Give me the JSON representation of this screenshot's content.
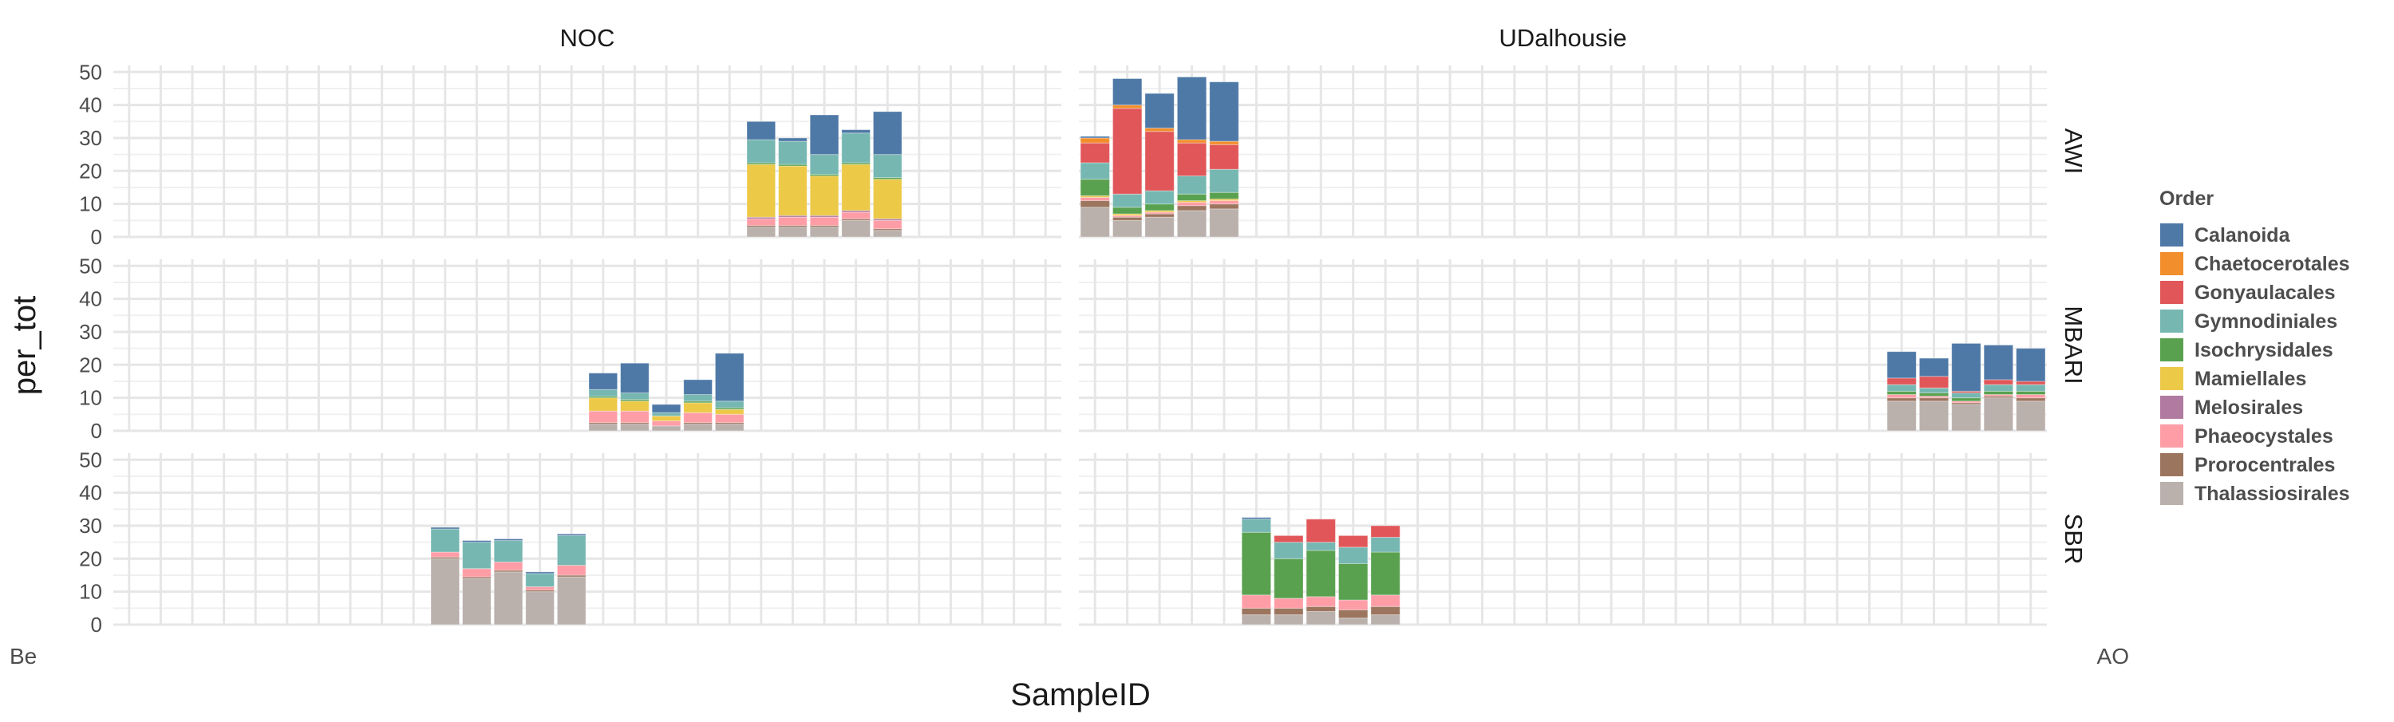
{
  "chart_data": {
    "type": "bar",
    "stacked": true,
    "facet_columns": [
      "NOC",
      "UDalhousie"
    ],
    "facet_rows": [
      "AWI",
      "MBARI",
      "SBR"
    ],
    "xlabel": "SampleID",
    "ylabel": "per_tot",
    "ylim": [
      0,
      52
    ],
    "yticks": [
      0,
      10,
      20,
      30,
      40,
      50
    ],
    "grid": true,
    "legend": {
      "title": "Order",
      "position": "right",
      "entries": [
        {
          "name": "Calanoida",
          "color": "#4e79a7"
        },
        {
          "name": "Chaetocerotales",
          "color": "#f28e2b"
        },
        {
          "name": "Gonyaulacales",
          "color": "#e15759"
        },
        {
          "name": "Gymnodiniales",
          "color": "#76b7b2"
        },
        {
          "name": "Isochrysidales",
          "color": "#59a14f"
        },
        {
          "name": "Mamiellales",
          "color": "#edc948"
        },
        {
          "name": "Melosirales",
          "color": "#b07aa1"
        },
        {
          "name": "Phaeocystales",
          "color": "#ff9da7"
        },
        {
          "name": "Prorocentrales",
          "color": "#9c755f"
        },
        {
          "name": "Thalassiosirales",
          "color": "#bab0ac"
        }
      ]
    },
    "x_tick_labels": {
      "first": "Be",
      "last": "AO"
    },
    "panels": [
      {
        "column": "NOC",
        "row": "AWI",
        "bars": [
          {
            "slot": 20,
            "segments": {
              "Thalassiosirales": 3,
              "Prorocentrales": 0.5,
              "Phaeocystales": 2,
              "Melosirales": 0.5,
              "Mamiellales": 16,
              "Isochrysidales": 0.5,
              "Gymnodiniales": 7,
              "Gonyaulacales": 0,
              "Chaetocerotales": 0,
              "Calanoida": 5.5
            }
          },
          {
            "slot": 21,
            "segments": {
              "Thalassiosirales": 3,
              "Prorocentrales": 0.5,
              "Phaeocystales": 2.5,
              "Melosirales": 0.5,
              "Mamiellales": 15,
              "Isochrysidales": 0.5,
              "Gymnodiniales": 7,
              "Gonyaulacales": 0,
              "Chaetocerotales": 0,
              "Calanoida": 1
            }
          },
          {
            "slot": 22,
            "segments": {
              "Thalassiosirales": 3,
              "Prorocentrales": 0.5,
              "Phaeocystales": 2.5,
              "Melosirales": 0.5,
              "Mamiellales": 12,
              "Isochrysidales": 0.5,
              "Gymnodiniales": 6,
              "Gonyaulacales": 0,
              "Chaetocerotales": 0,
              "Calanoida": 12
            }
          },
          {
            "slot": 23,
            "segments": {
              "Thalassiosirales": 5,
              "Prorocentrales": 0.5,
              "Phaeocystales": 2,
              "Melosirales": 0.5,
              "Mamiellales": 14,
              "Isochrysidales": 0.5,
              "Gymnodiniales": 9,
              "Gonyaulacales": 0,
              "Chaetocerotales": 0,
              "Calanoida": 1
            }
          },
          {
            "slot": 24,
            "segments": {
              "Thalassiosirales": 2,
              "Prorocentrales": 0.5,
              "Phaeocystales": 2.5,
              "Melosirales": 0.5,
              "Mamiellales": 12,
              "Isochrysidales": 0.5,
              "Gymnodiniales": 7,
              "Gonyaulacales": 0,
              "Chaetocerotales": 0,
              "Calanoida": 13
            }
          }
        ]
      },
      {
        "column": "NOC",
        "row": "MBARI",
        "bars": [
          {
            "slot": 15,
            "segments": {
              "Thalassiosirales": 2,
              "Prorocentrales": 0.5,
              "Phaeocystales": 3.5,
              "Melosirales": 0,
              "Mamiellales": 4,
              "Isochrysidales": 0.5,
              "Gymnodiniales": 2,
              "Gonyaulacales": 0,
              "Chaetocerotales": 0,
              "Calanoida": 5
            }
          },
          {
            "slot": 16,
            "segments": {
              "Thalassiosirales": 2,
              "Prorocentrales": 0.5,
              "Phaeocystales": 3.5,
              "Melosirales": 0,
              "Mamiellales": 3,
              "Isochrysidales": 0.5,
              "Gymnodiniales": 2,
              "Gonyaulacales": 0,
              "Chaetocerotales": 0,
              "Calanoida": 9
            }
          },
          {
            "slot": 17,
            "segments": {
              "Thalassiosirales": 1.5,
              "Prorocentrales": 0,
              "Phaeocystales": 1.5,
              "Melosirales": 0,
              "Mamiellales": 1.5,
              "Isochrysidales": 0,
              "Gymnodiniales": 1,
              "Gonyaulacales": 0,
              "Chaetocerotales": 0,
              "Calanoida": 2.5
            }
          },
          {
            "slot": 18,
            "segments": {
              "Thalassiosirales": 2,
              "Prorocentrales": 0.5,
              "Phaeocystales": 3,
              "Melosirales": 0,
              "Mamiellales": 3,
              "Isochrysidales": 0.5,
              "Gymnodiniales": 2,
              "Gonyaulacales": 0,
              "Chaetocerotales": 0,
              "Calanoida": 4.5
            }
          },
          {
            "slot": 19,
            "segments": {
              "Thalassiosirales": 2,
              "Prorocentrales": 0.5,
              "Phaeocystales": 2.5,
              "Melosirales": 0,
              "Mamiellales": 1.5,
              "Isochrysidales": 0.5,
              "Gymnodiniales": 2,
              "Gonyaulacales": 0,
              "Chaetocerotales": 0,
              "Calanoida": 14.5
            }
          }
        ]
      },
      {
        "column": "NOC",
        "row": "SBR",
        "bars": [
          {
            "slot": 10,
            "segments": {
              "Thalassiosirales": 20,
              "Prorocentrales": 0.5,
              "Phaeocystales": 1.5,
              "Melosirales": 0,
              "Mamiellales": 0,
              "Isochrysidales": 0,
              "Gymnodiniales": 7,
              "Gonyaulacales": 0,
              "Chaetocerotales": 0,
              "Calanoida": 0.5
            }
          },
          {
            "slot": 11,
            "segments": {
              "Thalassiosirales": 14,
              "Prorocentrales": 0.5,
              "Phaeocystales": 2.5,
              "Melosirales": 0,
              "Mamiellales": 0,
              "Isochrysidales": 0,
              "Gymnodiniales": 8,
              "Gonyaulacales": 0,
              "Chaetocerotales": 0,
              "Calanoida": 0.5
            }
          },
          {
            "slot": 12,
            "segments": {
              "Thalassiosirales": 16,
              "Prorocentrales": 0.5,
              "Phaeocystales": 2.5,
              "Melosirales": 0,
              "Mamiellales": 0,
              "Isochrysidales": 0,
              "Gymnodiniales": 6.5,
              "Gonyaulacales": 0,
              "Chaetocerotales": 0,
              "Calanoida": 0.5
            }
          },
          {
            "slot": 13,
            "segments": {
              "Thalassiosirales": 10,
              "Prorocentrales": 0.5,
              "Phaeocystales": 1,
              "Melosirales": 0,
              "Mamiellales": 0,
              "Isochrysidales": 0,
              "Gymnodiniales": 4,
              "Gonyaulacales": 0,
              "Chaetocerotales": 0,
              "Calanoida": 0.5
            }
          },
          {
            "slot": 14,
            "segments": {
              "Thalassiosirales": 14.5,
              "Prorocentrales": 0.5,
              "Phaeocystales": 3,
              "Melosirales": 0,
              "Mamiellales": 0,
              "Isochrysidales": 0,
              "Gymnodiniales": 9,
              "Gonyaulacales": 0,
              "Chaetocerotales": 0,
              "Calanoida": 0.5
            }
          }
        ]
      },
      {
        "column": "UDalhousie",
        "row": "AWI",
        "bars": [
          {
            "slot": 0,
            "segments": {
              "Thalassiosirales": 9,
              "Prorocentrales": 2,
              "Phaeocystales": 1,
              "Melosirales": 0,
              "Mamiellales": 0.5,
              "Isochrysidales": 5,
              "Gymnodiniales": 5,
              "Gonyaulacales": 6,
              "Chaetocerotales": 1.5,
              "Calanoida": 0.5
            }
          },
          {
            "slot": 1,
            "segments": {
              "Thalassiosirales": 5,
              "Prorocentrales": 1,
              "Phaeocystales": 0.5,
              "Melosirales": 0,
              "Mamiellales": 0.5,
              "Isochrysidales": 2,
              "Gymnodiniales": 4,
              "Gonyaulacales": 26,
              "Chaetocerotales": 1,
              "Calanoida": 8
            }
          },
          {
            "slot": 2,
            "segments": {
              "Thalassiosirales": 6,
              "Prorocentrales": 1,
              "Phaeocystales": 0.5,
              "Melosirales": 0,
              "Mamiellales": 0.5,
              "Isochrysidales": 2,
              "Gymnodiniales": 4,
              "Gonyaulacales": 18,
              "Chaetocerotales": 1,
              "Calanoida": 10.5
            }
          },
          {
            "slot": 3,
            "segments": {
              "Thalassiosirales": 8,
              "Prorocentrales": 1.5,
              "Phaeocystales": 1,
              "Melosirales": 0,
              "Mamiellales": 0.5,
              "Isochrysidales": 2,
              "Gymnodiniales": 5.5,
              "Gonyaulacales": 10,
              "Chaetocerotales": 1,
              "Calanoida": 19
            }
          },
          {
            "slot": 4,
            "segments": {
              "Thalassiosirales": 8.5,
              "Prorocentrales": 1.5,
              "Phaeocystales": 1,
              "Melosirales": 0,
              "Mamiellales": 0.5,
              "Isochrysidales": 2,
              "Gymnodiniales": 7,
              "Gonyaulacales": 7.5,
              "Chaetocerotales": 1,
              "Calanoida": 18
            }
          }
        ]
      },
      {
        "column": "UDalhousie",
        "row": "MBARI",
        "bars": [
          {
            "slot": 25,
            "segments": {
              "Thalassiosirales": 9,
              "Prorocentrales": 1,
              "Phaeocystales": 1,
              "Melosirales": 0,
              "Mamiellales": 0,
              "Isochrysidales": 1,
              "Gymnodiniales": 2,
              "Gonyaulacales": 2,
              "Chaetocerotales": 0,
              "Calanoida": 8
            }
          },
          {
            "slot": 26,
            "segments": {
              "Thalassiosirales": 9,
              "Prorocentrales": 1,
              "Phaeocystales": 0.5,
              "Melosirales": 0,
              "Mamiellales": 0,
              "Isochrysidales": 1,
              "Gymnodiniales": 1.5,
              "Gonyaulacales": 3.5,
              "Chaetocerotales": 0,
              "Calanoida": 5.5
            }
          },
          {
            "slot": 27,
            "segments": {
              "Thalassiosirales": 8,
              "Prorocentrales": 0.5,
              "Phaeocystales": 0.5,
              "Melosirales": 0,
              "Mamiellales": 0,
              "Isochrysidales": 1,
              "Gymnodiniales": 1.5,
              "Gonyaulacales": 0.5,
              "Chaetocerotales": 0,
              "Calanoida": 14.5
            }
          },
          {
            "slot": 28,
            "segments": {
              "Thalassiosirales": 10,
              "Prorocentrales": 0.5,
              "Phaeocystales": 0.5,
              "Melosirales": 0,
              "Mamiellales": 0,
              "Isochrysidales": 1,
              "Gymnodiniales": 2,
              "Gonyaulacales": 1.5,
              "Chaetocerotales": 0,
              "Calanoida": 10.5
            }
          },
          {
            "slot": 29,
            "segments": {
              "Thalassiosirales": 9,
              "Prorocentrales": 1,
              "Phaeocystales": 1,
              "Melosirales": 0,
              "Mamiellales": 0,
              "Isochrysidales": 1,
              "Gymnodiniales": 2,
              "Gonyaulacales": 1,
              "Chaetocerotales": 0,
              "Calanoida": 10
            }
          }
        ]
      },
      {
        "column": "UDalhousie",
        "row": "SBR",
        "bars": [
          {
            "slot": 5,
            "segments": {
              "Thalassiosirales": 3,
              "Prorocentrales": 2,
              "Phaeocystales": 4,
              "Melosirales": 0,
              "Mamiellales": 0,
              "Isochrysidales": 19,
              "Gymnodiniales": 4,
              "Gonyaulacales": 0,
              "Chaetocerotales": 0,
              "Calanoida": 0.5
            }
          },
          {
            "slot": 6,
            "segments": {
              "Thalassiosirales": 3,
              "Prorocentrales": 2,
              "Phaeocystales": 3,
              "Melosirales": 0,
              "Mamiellales": 0,
              "Isochrysidales": 12,
              "Gymnodiniales": 5,
              "Gonyaulacales": 2,
              "Chaetocerotales": 0,
              "Calanoida": 0
            }
          },
          {
            "slot": 7,
            "segments": {
              "Thalassiosirales": 4,
              "Prorocentrales": 1.5,
              "Phaeocystales": 3,
              "Melosirales": 0,
              "Mamiellales": 0,
              "Isochrysidales": 14,
              "Gymnodiniales": 2.5,
              "Gonyaulacales": 7,
              "Chaetocerotales": 0,
              "Calanoida": 0
            }
          },
          {
            "slot": 8,
            "segments": {
              "Thalassiosirales": 2,
              "Prorocentrales": 2.5,
              "Phaeocystales": 3,
              "Melosirales": 0,
              "Mamiellales": 0,
              "Isochrysidales": 11,
              "Gymnodiniales": 5,
              "Gonyaulacales": 3.5,
              "Chaetocerotales": 0,
              "Calanoida": 0
            }
          },
          {
            "slot": 9,
            "segments": {
              "Thalassiosirales": 3,
              "Prorocentrales": 2.5,
              "Phaeocystales": 3.5,
              "Melosirales": 0,
              "Mamiellales": 0,
              "Isochrysidales": 13,
              "Gymnodiniales": 4.5,
              "Gonyaulacales": 3.5,
              "Chaetocerotales": 0,
              "Calanoida": 0
            }
          }
        ]
      }
    ]
  }
}
